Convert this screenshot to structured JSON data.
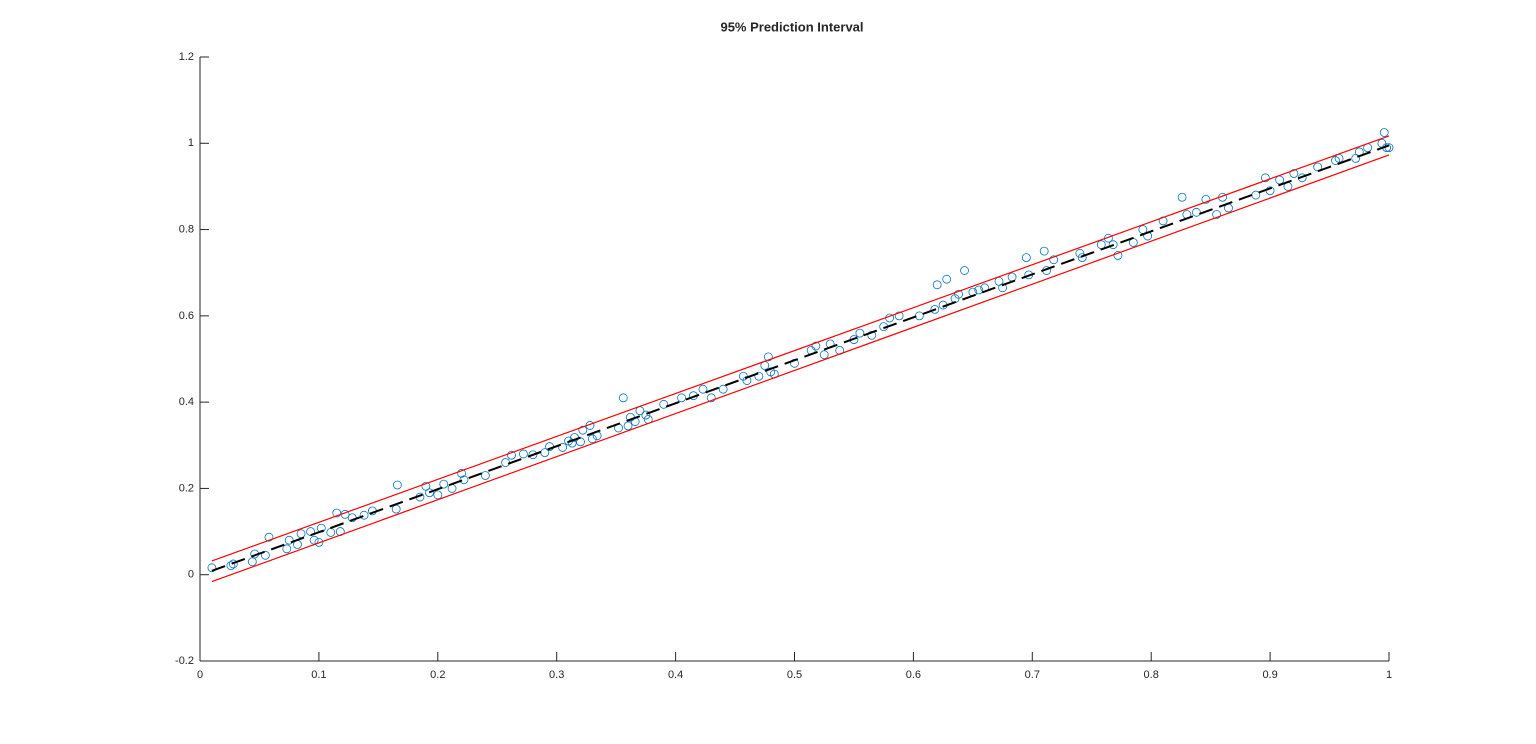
{
  "chart_data": {
    "type": "scatter",
    "title": "95% Prediction Interval",
    "xlim": [
      0,
      1
    ],
    "ylim": [
      -0.2,
      1.2
    ],
    "xticks": [
      0,
      0.1,
      0.2,
      0.3,
      0.4,
      0.5,
      0.6,
      0.7,
      0.8,
      0.9,
      1
    ],
    "yticks": [
      -0.2,
      0,
      0.2,
      0.4,
      0.6,
      0.8,
      1,
      1.2
    ],
    "series": [
      {
        "type": "scatter",
        "color": "#0072bd",
        "x": [
          0.01,
          0.026,
          0.028,
          0.044,
          0.046,
          0.055,
          0.058,
          0.073,
          0.075,
          0.082,
          0.085,
          0.093,
          0.096,
          0.1,
          0.102,
          0.11,
          0.115,
          0.118,
          0.122,
          0.128,
          0.138,
          0.145,
          0.165,
          0.166,
          0.185,
          0.19,
          0.193,
          0.2,
          0.205,
          0.212,
          0.22,
          0.222,
          0.24,
          0.257,
          0.262,
          0.272,
          0.28,
          0.29,
          0.294,
          0.305,
          0.31,
          0.313,
          0.315,
          0.32,
          0.322,
          0.328,
          0.33,
          0.334,
          0.352,
          0.356,
          0.36,
          0.362,
          0.366,
          0.37,
          0.375,
          0.377,
          0.39,
          0.405,
          0.415,
          0.423,
          0.43,
          0.44,
          0.457,
          0.46,
          0.47,
          0.475,
          0.478,
          0.48,
          0.483,
          0.5,
          0.514,
          0.518,
          0.525,
          0.53,
          0.538,
          0.55,
          0.555,
          0.565,
          0.575,
          0.58,
          0.588,
          0.605,
          0.618,
          0.62,
          0.625,
          0.628,
          0.635,
          0.638,
          0.643,
          0.65,
          0.655,
          0.66,
          0.672,
          0.675,
          0.683,
          0.695,
          0.697,
          0.71,
          0.712,
          0.718,
          0.74,
          0.742,
          0.758,
          0.764,
          0.768,
          0.772,
          0.785,
          0.793,
          0.797,
          0.81,
          0.826,
          0.83,
          0.838,
          0.846,
          0.855,
          0.86,
          0.865,
          0.888,
          0.896,
          0.9,
          0.908,
          0.915,
          0.92,
          0.927,
          0.94,
          0.955,
          0.958,
          0.972,
          0.975,
          0.982,
          0.994,
          0.996,
          0.998,
          1.0
        ],
        "values": [
          0.016,
          0.021,
          0.025,
          0.03,
          0.048,
          0.045,
          0.087,
          0.06,
          0.08,
          0.07,
          0.095,
          0.1,
          0.08,
          0.075,
          0.108,
          0.098,
          0.143,
          0.1,
          0.14,
          0.132,
          0.138,
          0.148,
          0.152,
          0.208,
          0.18,
          0.205,
          0.19,
          0.185,
          0.21,
          0.2,
          0.235,
          0.22,
          0.23,
          0.26,
          0.277,
          0.28,
          0.278,
          0.283,
          0.297,
          0.295,
          0.31,
          0.305,
          0.318,
          0.308,
          0.335,
          0.346,
          0.315,
          0.322,
          0.34,
          0.41,
          0.345,
          0.365,
          0.355,
          0.38,
          0.37,
          0.36,
          0.395,
          0.41,
          0.415,
          0.43,
          0.41,
          0.43,
          0.46,
          0.45,
          0.46,
          0.485,
          0.505,
          0.47,
          0.465,
          0.49,
          0.52,
          0.53,
          0.51,
          0.535,
          0.52,
          0.545,
          0.56,
          0.555,
          0.575,
          0.595,
          0.6,
          0.6,
          0.615,
          0.672,
          0.625,
          0.685,
          0.64,
          0.65,
          0.705,
          0.655,
          0.66,
          0.665,
          0.68,
          0.665,
          0.69,
          0.735,
          0.695,
          0.75,
          0.705,
          0.73,
          0.745,
          0.735,
          0.765,
          0.78,
          0.765,
          0.74,
          0.77,
          0.8,
          0.785,
          0.82,
          0.875,
          0.835,
          0.84,
          0.87,
          0.835,
          0.875,
          0.85,
          0.88,
          0.92,
          0.89,
          0.915,
          0.9,
          0.93,
          0.92,
          0.945,
          0.96,
          0.965,
          0.965,
          0.98,
          0.99,
          1.0,
          1.025,
          0.99,
          0.99
        ]
      },
      {
        "type": "line",
        "color": "#000000",
        "dashed": true,
        "x": [
          0.01,
          1.0
        ],
        "values": [
          0.009,
          0.995
        ]
      },
      {
        "type": "line",
        "color": "#ff0000",
        "dashed": false,
        "x": [
          0.01,
          1.0
        ],
        "values": [
          0.032,
          1.017
        ]
      },
      {
        "type": "line",
        "color": "#ff0000",
        "dashed": false,
        "x": [
          0.01,
          1.0
        ],
        "values": [
          -0.016,
          0.973
        ]
      }
    ]
  }
}
